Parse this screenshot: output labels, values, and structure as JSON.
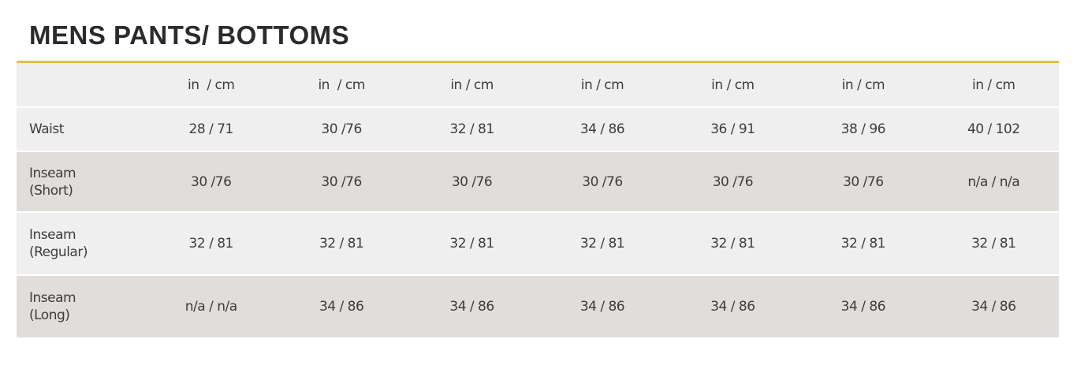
{
  "title": "MENS PANTS/ BOTTOMS",
  "colors": {
    "accent": "#e2c04c",
    "row_light": "#efefef",
    "row_dark": "#e0dddb"
  },
  "table": {
    "headers": [
      "",
      "in  / cm",
      "in  / cm",
      "in / cm",
      "in / cm",
      "in / cm",
      "in / cm",
      "in / cm"
    ],
    "rows": [
      {
        "label": [
          "Waist"
        ],
        "cells": [
          "28 / 71",
          "30 /76",
          "32 / 81",
          "34 / 86",
          "36 / 91",
          "38 / 96",
          "40 / 102"
        ]
      },
      {
        "label": [
          "Inseam",
          "(Short)"
        ],
        "cells": [
          "30 /76",
          "30 /76",
          "30 /76",
          "30 /76",
          "30 /76",
          "30 /76",
          "n/a / n/a"
        ]
      },
      {
        "label": [
          "Inseam",
          "(Regular)"
        ],
        "cells": [
          "32 / 81",
          "32 / 81",
          "32 / 81",
          "32 / 81",
          "32 / 81",
          "32 / 81",
          "32 / 81"
        ]
      },
      {
        "label": [
          "Inseam",
          "(Long)"
        ],
        "cells": [
          "n/a / n/a",
          "34 / 86",
          "34 / 86",
          "34 / 86",
          "34 / 86",
          "34 / 86",
          "34 / 86"
        ]
      }
    ]
  }
}
